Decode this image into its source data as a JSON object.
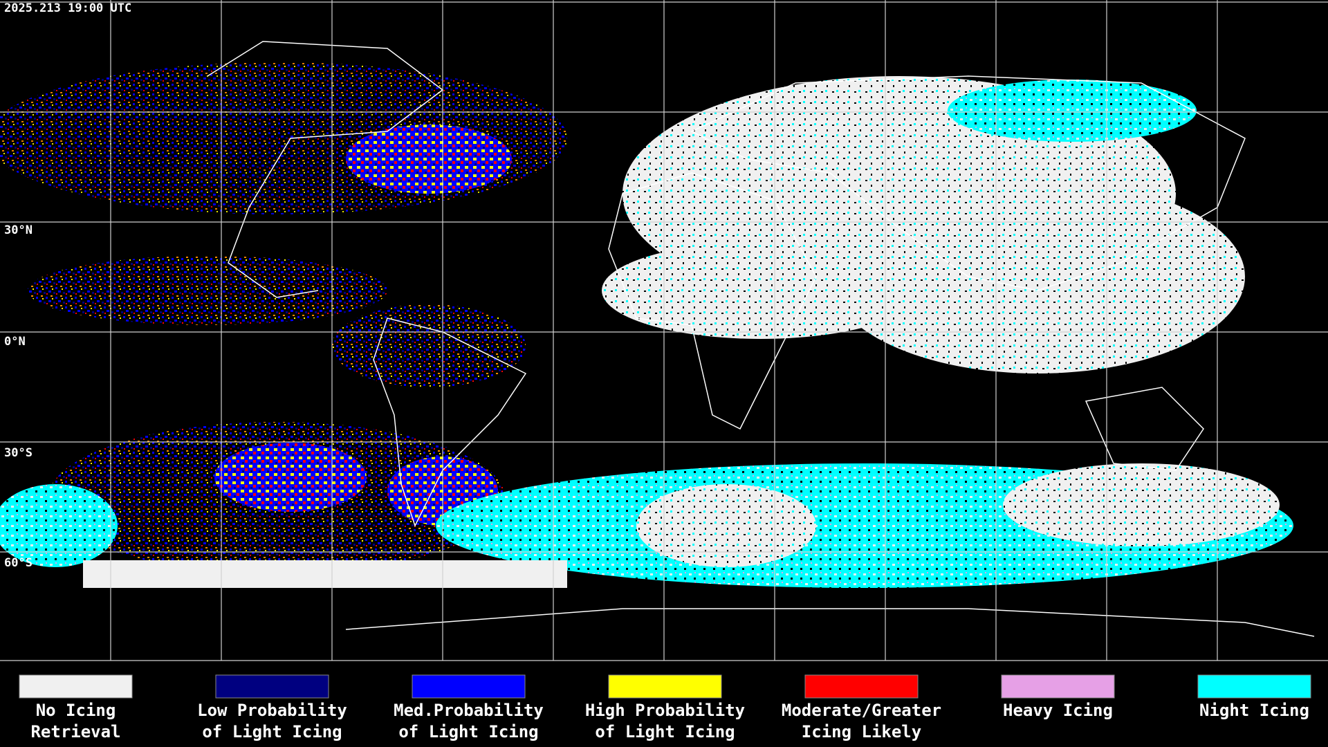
{
  "timestamp": "2025.213 19:00 UTC",
  "latitude_labels": [
    "30°N",
    "0°N",
    "30°S",
    "60°S"
  ],
  "legend": [
    {
      "lines": [
        "No Icing",
        "Retrieval"
      ],
      "color": "#f0f0f0"
    },
    {
      "lines": [
        "Low Probability",
        "of Light Icing"
      ],
      "color": "#000080"
    },
    {
      "lines": [
        "Med.Probability",
        "of Light Icing"
      ],
      "color": "#0000ff"
    },
    {
      "lines": [
        "High Probability",
        "of Light Icing"
      ],
      "color": "#ffff00"
    },
    {
      "lines": [
        "Moderate/Greater",
        "Icing Likely"
      ],
      "color": "#ff0000"
    },
    {
      "lines": [
        "Heavy Icing"
      ],
      "color": "#e6a0e6"
    },
    {
      "lines": [
        "Night Icing"
      ],
      "color": "#00ffff"
    }
  ]
}
